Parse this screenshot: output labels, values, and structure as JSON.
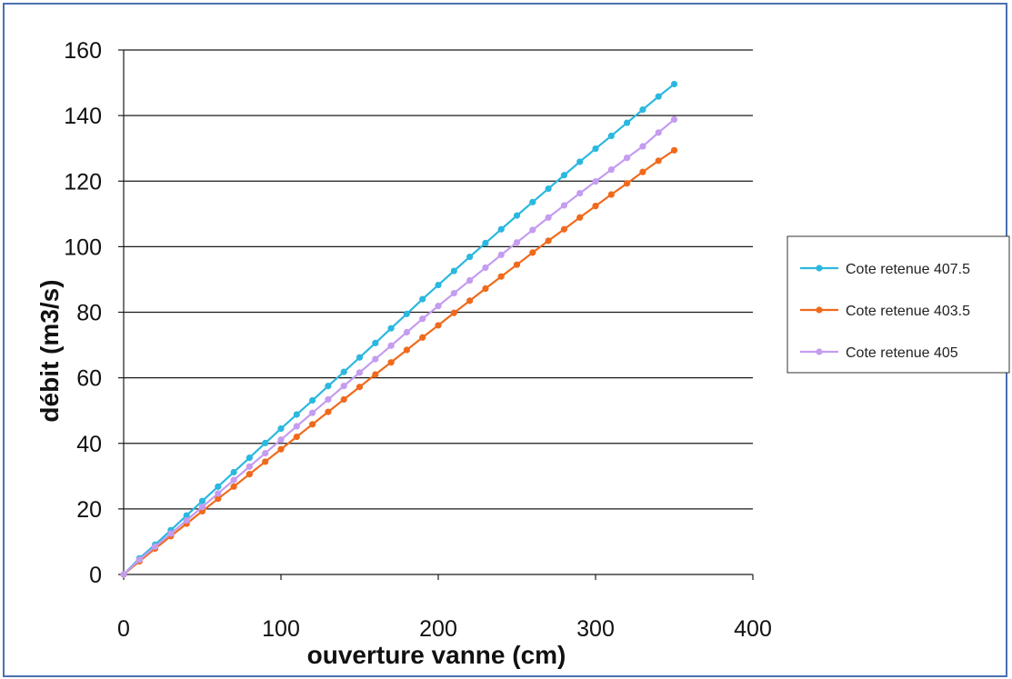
{
  "chart_data": {
    "type": "line",
    "xlabel": "ouverture vanne (cm)",
    "ylabel": "débit (m3/s)",
    "xlim": [
      0,
      400
    ],
    "ylim": [
      0,
      160
    ],
    "x_ticks": [
      "0",
      "100",
      "200",
      "300",
      "400"
    ],
    "y_ticks": [
      "0",
      "20",
      "40",
      "60",
      "80",
      "100",
      "120",
      "140",
      "160"
    ],
    "grid": "horizontal",
    "legend_position": "right",
    "x": [
      0,
      10,
      20,
      30,
      40,
      50,
      60,
      70,
      80,
      90,
      100,
      110,
      120,
      130,
      140,
      150,
      160,
      170,
      180,
      190,
      200,
      210,
      220,
      230,
      240,
      250,
      260,
      270,
      280,
      290,
      300,
      310,
      320,
      330,
      340,
      350
    ],
    "series": [
      {
        "name": "Cote retenue 407.5",
        "color": "#2bb8e0",
        "values": [
          0,
          4.9,
          9.1,
          13.5,
          18,
          22.4,
          26.8,
          31.2,
          35.6,
          40.1,
          44.5,
          48.8,
          53.1,
          57.5,
          61.8,
          66.2,
          70.6,
          75.1,
          79.5,
          84,
          88.3,
          92.6,
          96.9,
          101.1,
          105.3,
          109.5,
          113.6,
          117.7,
          121.8,
          125.9,
          129.9,
          133.8,
          137.8,
          141.8,
          145.8,
          149.6
        ]
      },
      {
        "name": "Cote retenue 403.5",
        "color": "#f06a1c",
        "values": [
          0,
          4,
          7.9,
          11.7,
          15.5,
          19.3,
          23.1,
          26.8,
          30.6,
          34.4,
          38.2,
          42,
          45.8,
          49.6,
          53.4,
          57.2,
          61,
          64.7,
          68.5,
          72.3,
          76,
          79.8,
          83.5,
          87.2,
          90.9,
          94.5,
          98.2,
          101.8,
          105.3,
          108.9,
          112.4,
          115.9,
          119.3,
          122.8,
          126.2,
          129.4
        ]
      },
      {
        "name": "Cote retenue 405",
        "color": "#c49cf0",
        "values": [
          0,
          4.5,
          8.5,
          12.5,
          16.5,
          20.6,
          24.7,
          28.8,
          32.9,
          37,
          41.1,
          45.2,
          49.3,
          53.4,
          57.5,
          61.6,
          65.7,
          69.8,
          73.9,
          78,
          81.9,
          85.8,
          89.7,
          93.6,
          97.5,
          101.3,
          105.1,
          108.9,
          112.6,
          116.3,
          119.9,
          123.5,
          127.1,
          130.6,
          134.8,
          138.8
        ]
      }
    ]
  }
}
